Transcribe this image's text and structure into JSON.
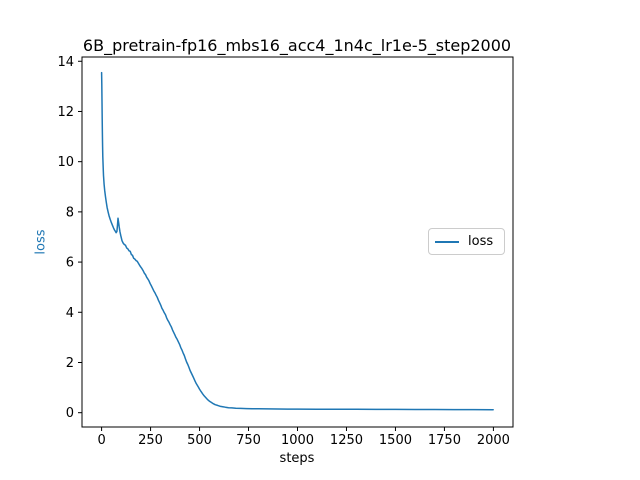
{
  "chart_data": {
    "type": "line",
    "title": "6B_pretrain-fp16_mbs16_acc4_1n4c_lr1e-5_step2000",
    "xlabel": "steps",
    "ylabel": "loss",
    "ylabel_color": "#1f77b4",
    "axis_color": "#000000",
    "background": "#ffffff",
    "grid": false,
    "xlim": [
      -100,
      2100
    ],
    "ylim": [
      -0.57,
      14.17
    ],
    "xticks": [
      0,
      250,
      500,
      750,
      1000,
      1250,
      1500,
      1750,
      2000
    ],
    "yticks": [
      0,
      2,
      4,
      6,
      8,
      10,
      12,
      14
    ],
    "legend": {
      "label": "loss",
      "line_color": "#1f77b4",
      "border_color": "#cccccc",
      "position": "center-right"
    },
    "series": [
      {
        "name": "loss",
        "color": "#1f77b4",
        "points": [
          [
            0,
            13.55
          ],
          [
            1,
            13.1
          ],
          [
            2,
            12.4
          ],
          [
            3,
            11.7
          ],
          [
            4,
            11.1
          ],
          [
            5,
            10.6
          ],
          [
            6,
            10.2
          ],
          [
            8,
            9.75
          ],
          [
            10,
            9.45
          ],
          [
            13,
            9.1
          ],
          [
            16,
            8.85
          ],
          [
            20,
            8.6
          ],
          [
            24,
            8.38
          ],
          [
            28,
            8.18
          ],
          [
            33,
            8.0
          ],
          [
            38,
            7.85
          ],
          [
            44,
            7.7
          ],
          [
            50,
            7.57
          ],
          [
            56,
            7.45
          ],
          [
            61,
            7.36
          ],
          [
            66,
            7.28
          ],
          [
            70,
            7.23
          ],
          [
            74,
            7.17
          ],
          [
            78,
            7.22
          ],
          [
            81,
            7.48
          ],
          [
            84,
            7.75
          ],
          [
            87,
            7.58
          ],
          [
            90,
            7.4
          ],
          [
            94,
            7.2
          ],
          [
            98,
            7.05
          ],
          [
            104,
            6.85
          ],
          [
            110,
            6.76
          ],
          [
            116,
            6.7
          ],
          [
            122,
            6.67
          ],
          [
            128,
            6.56
          ],
          [
            134,
            6.53
          ],
          [
            140,
            6.45
          ],
          [
            146,
            6.43
          ],
          [
            152,
            6.3
          ],
          [
            158,
            6.27
          ],
          [
            164,
            6.15
          ],
          [
            170,
            6.12
          ],
          [
            176,
            6.06
          ],
          [
            182,
            6.03
          ],
          [
            188,
            5.95
          ],
          [
            194,
            5.87
          ],
          [
            200,
            5.8
          ],
          [
            206,
            5.74
          ],
          [
            212,
            5.66
          ],
          [
            218,
            5.56
          ],
          [
            224,
            5.5
          ],
          [
            230,
            5.4
          ],
          [
            236,
            5.33
          ],
          [
            242,
            5.25
          ],
          [
            248,
            5.14
          ],
          [
            254,
            5.05
          ],
          [
            260,
            4.96
          ],
          [
            266,
            4.86
          ],
          [
            272,
            4.78
          ],
          [
            278,
            4.68
          ],
          [
            284,
            4.6
          ],
          [
            290,
            4.48
          ],
          [
            296,
            4.38
          ],
          [
            302,
            4.28
          ],
          [
            308,
            4.16
          ],
          [
            314,
            4.08
          ],
          [
            320,
            3.98
          ],
          [
            326,
            3.9
          ],
          [
            332,
            3.78
          ],
          [
            338,
            3.68
          ],
          [
            344,
            3.6
          ],
          [
            350,
            3.5
          ],
          [
            356,
            3.42
          ],
          [
            362,
            3.3
          ],
          [
            368,
            3.2
          ],
          [
            374,
            3.1
          ],
          [
            380,
            3.0
          ],
          [
            386,
            2.92
          ],
          [
            392,
            2.82
          ],
          [
            398,
            2.72
          ],
          [
            404,
            2.6
          ],
          [
            410,
            2.5
          ],
          [
            416,
            2.38
          ],
          [
            422,
            2.28
          ],
          [
            428,
            2.15
          ],
          [
            434,
            2.02
          ],
          [
            440,
            1.92
          ],
          [
            446,
            1.8
          ],
          [
            452,
            1.68
          ],
          [
            458,
            1.58
          ],
          [
            464,
            1.48
          ],
          [
            470,
            1.38
          ],
          [
            476,
            1.28
          ],
          [
            482,
            1.18
          ],
          [
            488,
            1.1
          ],
          [
            494,
            1.02
          ],
          [
            500,
            0.94
          ],
          [
            508,
            0.84
          ],
          [
            516,
            0.75
          ],
          [
            524,
            0.67
          ],
          [
            532,
            0.6
          ],
          [
            540,
            0.53
          ],
          [
            550,
            0.46
          ],
          [
            560,
            0.41
          ],
          [
            570,
            0.36
          ],
          [
            580,
            0.32
          ],
          [
            592,
            0.29
          ],
          [
            604,
            0.26
          ],
          [
            618,
            0.24
          ],
          [
            632,
            0.22
          ],
          [
            648,
            0.2
          ],
          [
            665,
            0.19
          ],
          [
            685,
            0.18
          ],
          [
            710,
            0.17
          ],
          [
            740,
            0.165
          ],
          [
            770,
            0.16
          ],
          [
            800,
            0.155
          ],
          [
            850,
            0.15
          ],
          [
            900,
            0.147
          ],
          [
            950,
            0.145
          ],
          [
            1000,
            0.142
          ],
          [
            1100,
            0.14
          ],
          [
            1200,
            0.137
          ],
          [
            1300,
            0.135
          ],
          [
            1400,
            0.132
          ],
          [
            1500,
            0.13
          ],
          [
            1600,
            0.128
          ],
          [
            1700,
            0.126
          ],
          [
            1800,
            0.124
          ],
          [
            1900,
            0.122
          ],
          [
            1999,
            0.12
          ]
        ]
      }
    ]
  }
}
